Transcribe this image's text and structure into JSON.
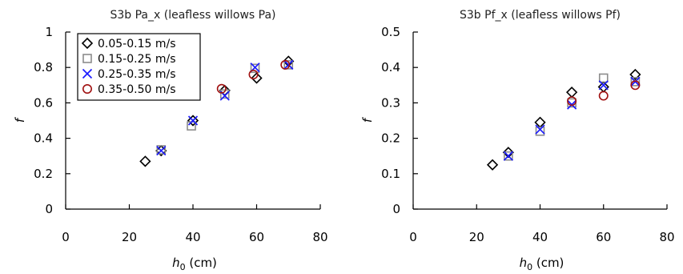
{
  "chart_data": [
    {
      "type": "scatter",
      "title": "S3b Pa_x (leafless willows Pa)",
      "xlabel": {
        "main": "h",
        "sub": "0",
        "unit": " (cm)"
      },
      "ylabel": "f",
      "xlim": [
        0,
        80
      ],
      "ylim": [
        0,
        1
      ],
      "xticks": [
        "0",
        "20",
        "40",
        "60",
        "80"
      ],
      "yticks": [
        "0",
        "0.2",
        "0.4",
        "0.6",
        "0.8",
        "1"
      ],
      "grid": false,
      "legend": "top-left",
      "series": [
        {
          "name": "0.05-0.15 m/s",
          "marker": "diamond",
          "color": "#000000",
          "points": [
            [
              25,
              0.27
            ],
            [
              30,
              0.33
            ],
            [
              40,
              0.5
            ],
            [
              50,
              0.67
            ],
            [
              60,
              0.74
            ],
            [
              70,
              0.835
            ]
          ]
        },
        {
          "name": "0.15-0.25 m/s",
          "marker": "square",
          "color": "#8c8c8c",
          "points": [
            [
              30,
              0.335
            ],
            [
              39.5,
              0.47
            ],
            [
              50,
              0.65
            ],
            [
              59.5,
              0.795
            ],
            [
              70,
              0.815
            ]
          ]
        },
        {
          "name": "0.25-0.35 m/s",
          "marker": "x",
          "color": "#1a1aff",
          "points": [
            [
              30,
              0.33
            ],
            [
              40,
              0.5
            ],
            [
              50,
              0.64
            ],
            [
              59.5,
              0.8
            ],
            [
              70,
              0.815
            ]
          ]
        },
        {
          "name": "0.35-0.50 m/s",
          "marker": "circle",
          "color": "#a01010",
          "points": [
            [
              49,
              0.68
            ],
            [
              59,
              0.76
            ],
            [
              69,
              0.815
            ]
          ]
        }
      ]
    },
    {
      "type": "scatter",
      "title": "S3b Pf_x (leafless willows Pf)",
      "xlabel": {
        "main": "h",
        "sub": "0",
        "unit": " (cm)"
      },
      "ylabel": "f",
      "xlim": [
        0,
        80
      ],
      "ylim": [
        0,
        0.5
      ],
      "xticks": [
        "0",
        "20",
        "40",
        "60",
        "80"
      ],
      "yticks": [
        "0",
        "0.1",
        "0.2",
        "0.3",
        "0.4",
        "0.5"
      ],
      "grid": false,
      "legend": "none",
      "series": [
        {
          "name": "0.05-0.15 m/s",
          "marker": "diamond",
          "color": "#000000",
          "points": [
            [
              25,
              0.125
            ],
            [
              30,
              0.16
            ],
            [
              40,
              0.245
            ],
            [
              50,
              0.33
            ],
            [
              60,
              0.345
            ],
            [
              70,
              0.38
            ]
          ]
        },
        {
          "name": "0.15-0.25 m/s",
          "marker": "square",
          "color": "#8c8c8c",
          "points": [
            [
              30,
              0.15
            ],
            [
              40,
              0.22
            ],
            [
              50,
              0.3
            ],
            [
              60,
              0.37
            ],
            [
              70,
              0.36
            ]
          ]
        },
        {
          "name": "0.25-0.35 m/s",
          "marker": "x",
          "color": "#1a1aff",
          "points": [
            [
              30,
              0.15
            ],
            [
              40,
              0.225
            ],
            [
              50,
              0.295
            ],
            [
              60,
              0.35
            ],
            [
              70,
              0.36
            ]
          ]
        },
        {
          "name": "0.35-0.50 m/s",
          "marker": "circle",
          "color": "#a01010",
          "points": [
            [
              50,
              0.305
            ],
            [
              60,
              0.32
            ],
            [
              70,
              0.35
            ]
          ]
        }
      ]
    }
  ]
}
